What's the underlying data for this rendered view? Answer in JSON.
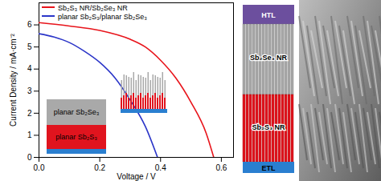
{
  "chart_data": {
    "type": "line",
    "x_label": "Voltage / V",
    "y_label": "Current Density / mA·cm⁻²",
    "xlim": [
      0,
      0.64
    ],
    "ylim": [
      0,
      7
    ],
    "xticks": [
      {
        "value": 0,
        "label": "0.0"
      },
      {
        "value": 0.2,
        "label": "0.2"
      },
      {
        "value": 0.4,
        "label": "0.4"
      },
      {
        "value": 0.6,
        "label": "0.6"
      }
    ],
    "yticks": [
      0,
      1,
      2,
      3,
      4,
      5,
      6
    ],
    "legend": "upper left",
    "series": [
      {
        "name": "Sb₂S₃ NR/Sb₂Se₃ NR",
        "color": "#e8141b",
        "x": [
          0,
          0.1,
          0.2,
          0.3,
          0.35,
          0.4,
          0.45,
          0.5,
          0.55,
          0.575
        ],
        "values": [
          6.1,
          5.95,
          5.75,
          5.35,
          5.0,
          4.4,
          3.6,
          2.5,
          1.1,
          0
        ]
      },
      {
        "name": "planar Sb₂S₃/planar Sb₂Se₃",
        "color": "#2b35c8",
        "x": [
          0,
          0.05,
          0.1,
          0.15,
          0.2,
          0.25,
          0.3,
          0.35,
          0.39
        ],
        "values": [
          5.6,
          5.45,
          5.2,
          4.8,
          4.3,
          3.6,
          2.6,
          1.4,
          0
        ]
      }
    ],
    "annotations": [
      "planar Sb₂Se₃",
      "planar Sb₂S₃"
    ]
  },
  "diagram": {
    "layers": [
      "HTL",
      "Sb₂Se₃ NR",
      "Sb₂S₃ NR",
      "ETL"
    ]
  }
}
